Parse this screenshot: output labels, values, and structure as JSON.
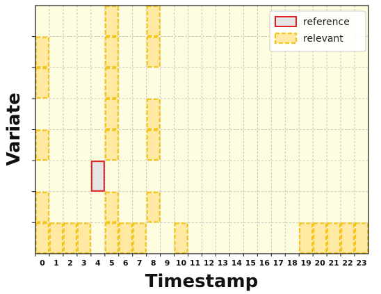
{
  "chart_data": {
    "type": "heatmap",
    "xlabel": "Timestamp",
    "ylabel": "Variate",
    "x_ticks": [
      0,
      1,
      2,
      3,
      4,
      5,
      6,
      7,
      8,
      9,
      10,
      11,
      12,
      13,
      14,
      15,
      16,
      17,
      18,
      19,
      20,
      21,
      22,
      23
    ],
    "n_rows": 8,
    "grid": true,
    "legend_position": "top-right",
    "legend": [
      {
        "label": "reference",
        "style": "solid-red"
      },
      {
        "label": "relevant",
        "style": "dashed-gold"
      }
    ],
    "reference_cells": [
      {
        "t": 4,
        "row": 3
      }
    ],
    "relevant_cells": [
      {
        "t": 0,
        "row": 1
      },
      {
        "t": 0,
        "row": 2
      },
      {
        "t": 0,
        "row": 4
      },
      {
        "t": 0,
        "row": 6
      },
      {
        "t": 0,
        "row": 7
      },
      {
        "t": 1,
        "row": 1
      },
      {
        "t": 2,
        "row": 1
      },
      {
        "t": 3,
        "row": 1
      },
      {
        "t": 5,
        "row": 1
      },
      {
        "t": 5,
        "row": 2
      },
      {
        "t": 5,
        "row": 4
      },
      {
        "t": 5,
        "row": 5
      },
      {
        "t": 5,
        "row": 6
      },
      {
        "t": 5,
        "row": 7
      },
      {
        "t": 5,
        "row": 8
      },
      {
        "t": 6,
        "row": 1
      },
      {
        "t": 7,
        "row": 1
      },
      {
        "t": 8,
        "row": 2
      },
      {
        "t": 8,
        "row": 4
      },
      {
        "t": 8,
        "row": 5
      },
      {
        "t": 8,
        "row": 7
      },
      {
        "t": 8,
        "row": 8
      },
      {
        "t": 10,
        "row": 1
      },
      {
        "t": 19,
        "row": 1
      },
      {
        "t": 20,
        "row": 1
      },
      {
        "t": 21,
        "row": 1
      },
      {
        "t": 22,
        "row": 1
      },
      {
        "t": 23,
        "row": 1
      }
    ],
    "colors": {
      "background": "#fffde0",
      "relevant_fill": "#ffe9a3",
      "relevant_stroke": "#f5c518",
      "reference_fill": "#e4e4e4",
      "reference_stroke": "#e02020",
      "grid": "#b8b8b8"
    }
  }
}
